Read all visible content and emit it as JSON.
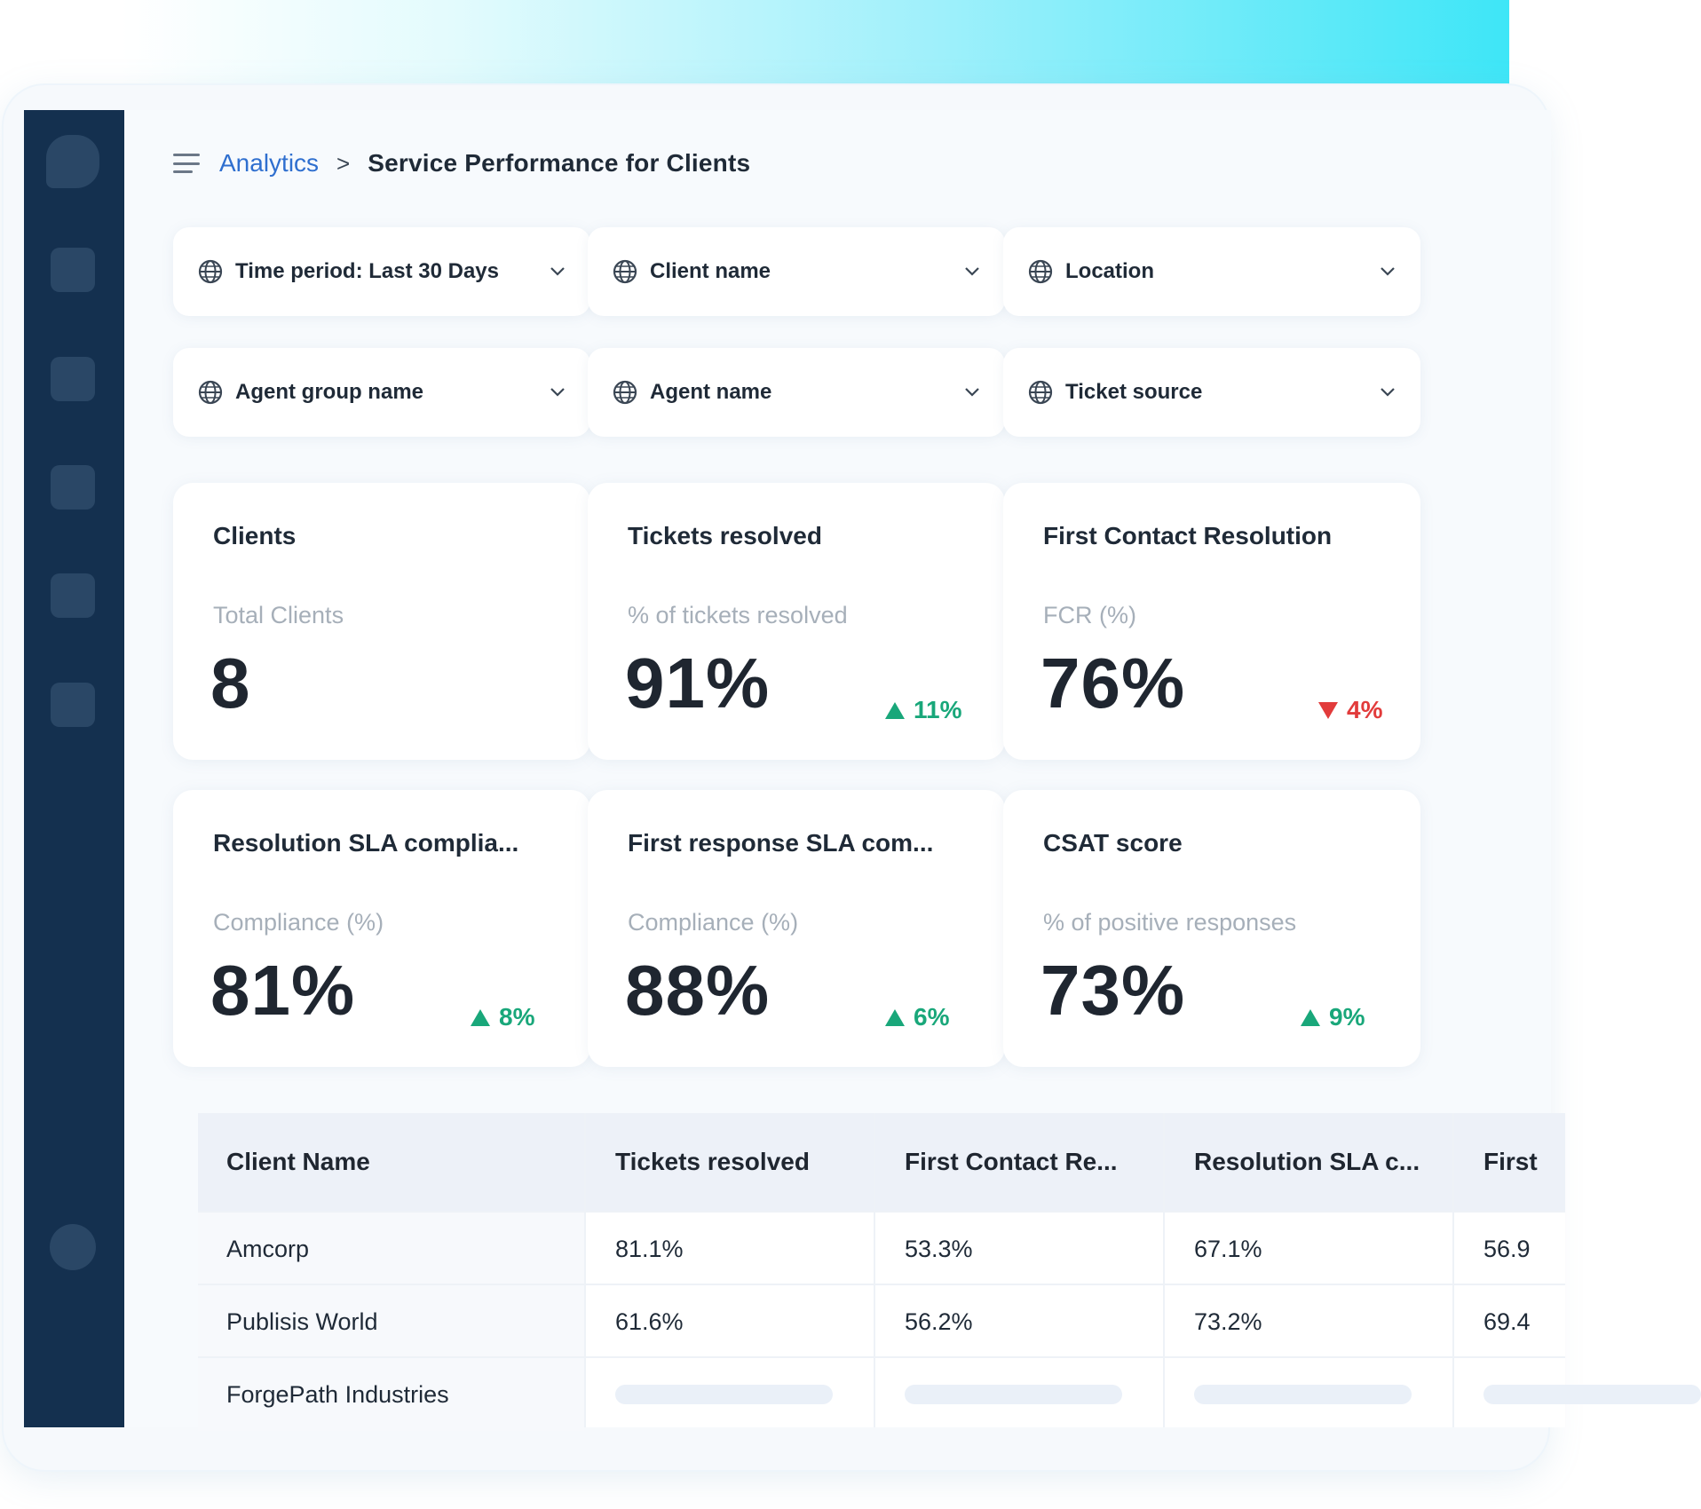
{
  "breadcrumb": {
    "root": "Analytics",
    "separator": ">",
    "current": "Service Performance for Clients"
  },
  "filters": [
    {
      "label": "Time period:  Last 30 Days",
      "icon": "globe-icon"
    },
    {
      "label": "Client name",
      "icon": "globe-icon"
    },
    {
      "label": "Location",
      "icon": "globe-icon"
    },
    {
      "label": "Agent group name",
      "icon": "globe-icon"
    },
    {
      "label": "Agent name",
      "icon": "globe-icon"
    },
    {
      "label": "Ticket source",
      "icon": "globe-icon"
    }
  ],
  "cards": [
    {
      "title": "Clients",
      "subtitle": "Total Clients",
      "value": "8",
      "trend": "",
      "trend_dir": ""
    },
    {
      "title": "Tickets resolved",
      "subtitle": "% of tickets resolved",
      "value": "91%",
      "trend": "11%",
      "trend_dir": "up"
    },
    {
      "title": "First Contact Resolution",
      "subtitle": "FCR (%)",
      "value": "76%",
      "trend": "4%",
      "trend_dir": "down"
    },
    {
      "title": "Resolution SLA complia...",
      "subtitle": "Compliance (%)",
      "value": "81%",
      "trend": "8%",
      "trend_dir": "up"
    },
    {
      "title": "First response SLA com...",
      "subtitle": "Compliance (%)",
      "value": "88%",
      "trend": "6%",
      "trend_dir": "up"
    },
    {
      "title": "CSAT score",
      "subtitle": "% of positive responses",
      "value": "73%",
      "trend": "9%",
      "trend_dir": "up"
    }
  ],
  "table": {
    "columns": [
      "Client Name",
      "Tickets resolved",
      "First Contact Re...",
      "Resolution SLA c...",
      "First"
    ],
    "rows": [
      [
        "Amcorp",
        "81.1%",
        "53.3%",
        "67.1%",
        "56.9"
      ],
      [
        "Publisis World",
        "61.6%",
        "56.2%",
        "73.2%",
        "69.4"
      ],
      [
        "ForgePath Industries",
        "",
        "",
        "",
        ""
      ]
    ]
  },
  "colors": {
    "sidebar": "#14304f",
    "accent_link": "#2f6fcf",
    "trend_up": "#19a77a",
    "trend_down": "#e23b3b"
  }
}
